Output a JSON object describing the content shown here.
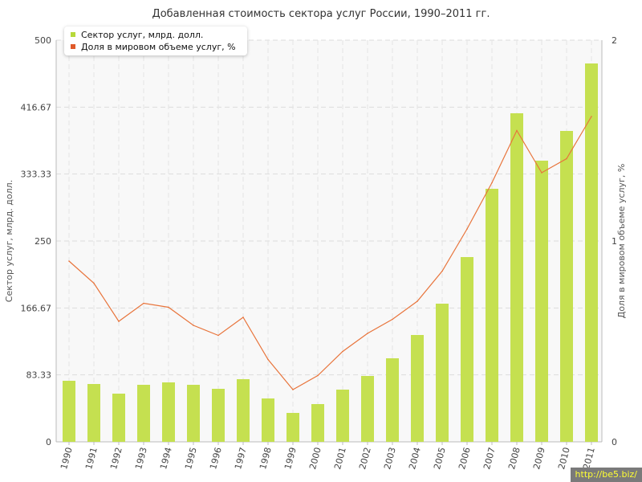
{
  "chart_data": {
    "type": "bar",
    "title": "Добавленная стоимость сектора услуг России, 1990–2011 гг.",
    "ylabel": "Сектор услуг, млрд. долл.",
    "y2label": "Доля в мировом объеме услуг, %",
    "categories": [
      "1990",
      "1991",
      "1992",
      "1993",
      "1994",
      "1995",
      "1996",
      "1997",
      "1998",
      "1999",
      "2000",
      "2001",
      "2002",
      "2003",
      "2004",
      "2005",
      "2006",
      "2007",
      "2008",
      "2009",
      "2010",
      "2011"
    ],
    "ylim": [
      0,
      500
    ],
    "y2lim": [
      0,
      2
    ],
    "yticks": [
      "0",
      "83.33",
      "166.67",
      "250",
      "333.33",
      "416.67",
      "500"
    ],
    "y2ticks": [
      "0",
      "1",
      "2"
    ],
    "grid": true,
    "legend_position": "top-left",
    "series": [
      {
        "name": "Сектор услуг, млрд. долл.",
        "type": "bar",
        "axis": "left",
        "color": "#c5e050",
        "values": [
          76,
          72,
          60,
          71,
          74,
          71,
          66,
          78,
          54,
          36,
          47,
          65,
          82,
          104,
          133,
          172,
          230,
          315,
          409,
          350,
          387,
          471
        ]
      },
      {
        "name": "Доля в мировом объеме услуг, %",
        "type": "line",
        "axis": "right",
        "color": "#e8743b",
        "values": [
          0.9,
          0.79,
          0.6,
          0.69,
          0.67,
          0.58,
          0.53,
          0.62,
          0.41,
          0.26,
          0.33,
          0.45,
          0.54,
          0.61,
          0.7,
          0.85,
          1.06,
          1.29,
          1.55,
          1.34,
          1.41,
          1.62
        ]
      }
    ]
  },
  "watermark": "http://be5.biz/"
}
